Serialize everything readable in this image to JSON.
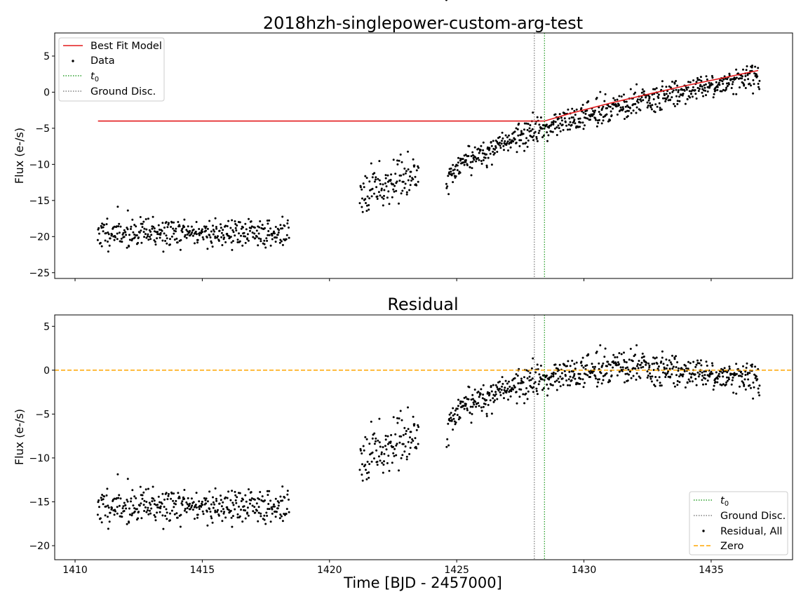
{
  "chart_data": [
    {
      "type": "scatter",
      "title": "2018hzh-singlepower-custom-arg-test",
      "xlabel": "",
      "ylabel": "Flux (e-/s)",
      "xlim": [
        1409.2,
        1438.2
      ],
      "ylim": [
        -25.8,
        8.2
      ],
      "xticks": [
        1410,
        1415,
        1420,
        1425,
        1430,
        1435
      ],
      "yticks": [
        -25,
        -20,
        -15,
        -10,
        -5,
        0,
        5
      ],
      "ytick_labels": [
        "−25",
        "−20",
        "−15",
        "−10",
        "−5",
        "0",
        "5"
      ],
      "show_xtick_labels": false,
      "grid": false,
      "legend_position": "top-left",
      "legend": [
        "Best Fit Model",
        "Data",
        "t0",
        "Ground Disc."
      ],
      "vlines": [
        {
          "name": "t0",
          "x": 1428.45,
          "color": "#2ca02c",
          "style": "dotted"
        },
        {
          "name": "Ground Disc.",
          "x": 1428.05,
          "color": "#808080",
          "style": "dotted"
        }
      ],
      "series": [
        {
          "name": "Best Fit Model",
          "kind": "line",
          "color": "#e31a1c",
          "x": [
            1410.9,
            1428.45,
            1429.5,
            1431,
            1432.5,
            1434,
            1435.5,
            1436.85
          ],
          "y": [
            -4.0,
            -4.0,
            -2.9,
            -1.55,
            -0.3,
            0.9,
            2.0,
            3.0
          ]
        },
        {
          "name": "Data",
          "kind": "points",
          "color": "#000000",
          "segments": [
            {
              "x_start": 1410.9,
              "x_end": 1418.4,
              "n": 380,
              "start": -19.5,
              "end": -19.5,
              "noise": 1.7,
              "power": 1,
              "seed": 11
            },
            {
              "x_start": 1421.2,
              "x_end": 1423.5,
              "n": 120,
              "start": -13.5,
              "end": -11.5,
              "noise": 2.4,
              "power": 1,
              "seed": 23
            },
            {
              "x_start": 1424.6,
              "x_end": 1436.9,
              "n": 680,
              "start": -13.2,
              "end": 2.3,
              "noise": 1.5,
              "power": 0.55,
              "seed": 37
            }
          ]
        }
      ]
    },
    {
      "type": "scatter",
      "title": "Residual",
      "xlabel": "Time [BJD - 2457000]",
      "ylabel": "Flux (e-/s)",
      "xlim": [
        1409.2,
        1438.2
      ],
      "ylim": [
        -21.6,
        6.3
      ],
      "xticks": [
        1410,
        1415,
        1420,
        1425,
        1430,
        1435
      ],
      "xtick_labels": [
        "1410",
        "1415",
        "1420",
        "1425",
        "1430",
        "1435"
      ],
      "yticks": [
        -20,
        -15,
        -10,
        -5,
        0,
        5
      ],
      "ytick_labels": [
        "−20",
        "−15",
        "−10",
        "−5",
        "0",
        "5"
      ],
      "show_xtick_labels": true,
      "grid": false,
      "legend_position": "bottom-right",
      "legend": [
        "t0",
        "Ground Disc.",
        "Residual, All",
        "Zero"
      ],
      "vlines": [
        {
          "name": "t0",
          "x": 1428.45,
          "color": "#2ca02c",
          "style": "dotted"
        },
        {
          "name": "Ground Disc.",
          "x": 1428.05,
          "color": "#808080",
          "style": "dotted"
        }
      ],
      "hlines": [
        {
          "name": "Zero",
          "y": 0,
          "color": "#ffa500",
          "style": "dashed"
        }
      ],
      "series": [
        {
          "name": "Residual, All",
          "kind": "points",
          "color": "#000000",
          "segments": [
            {
              "x_start": 1410.9,
              "x_end": 1418.4,
              "n": 380,
              "start": -15.5,
              "end": -15.5,
              "noise": 1.7,
              "power": 1,
              "seed": 11
            },
            {
              "x_start": 1421.2,
              "x_end": 1423.5,
              "n": 120,
              "start": -9.5,
              "end": -7.5,
              "noise": 2.4,
              "power": 1,
              "seed": 23
            },
            {
              "x_start": 1424.6,
              "x_end": 1436.9,
              "n": 680,
              "start": -9.3,
              "end": -1.0,
              "noise": 1.5,
              "power": 0.3,
              "seed": 37,
              "peak_at": 1431.5,
              "peak_value": 0.5
            }
          ]
        }
      ]
    }
  ],
  "legend_top": {
    "model_label": "Best Fit Model",
    "data_label": "Data",
    "t0_label": "t0",
    "ground_label": "Ground Disc."
  },
  "legend_bottom": {
    "t0_label": "t0",
    "ground_label": "Ground Disc.",
    "residual_label": "Residual, All",
    "zero_label": "Zero"
  }
}
